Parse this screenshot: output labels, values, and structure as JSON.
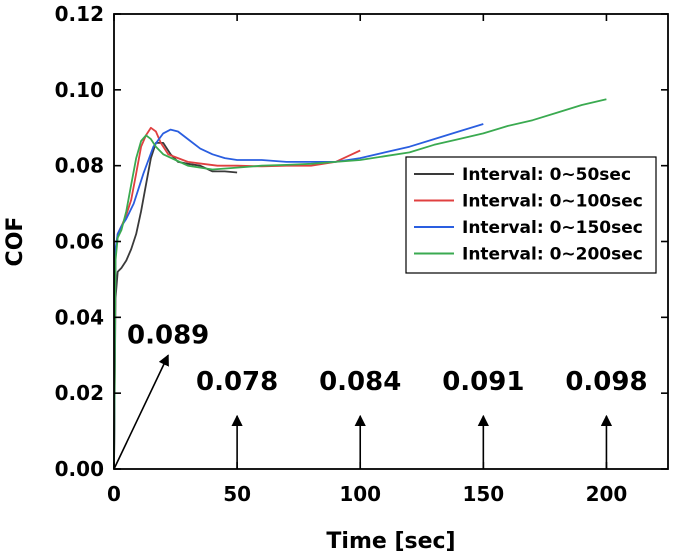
{
  "chart_data": {
    "type": "line",
    "title": "",
    "xlabel": "Time [sec]",
    "ylabel": "COF",
    "xlim": [
      0,
      225
    ],
    "ylim": [
      0,
      0.12
    ],
    "x_ticks": [
      0,
      50,
      100,
      150,
      200
    ],
    "x_tick_labels": [
      "0",
      "50",
      "100",
      "150",
      "200"
    ],
    "y_ticks": [
      0,
      0.02,
      0.04,
      0.06,
      0.08,
      0.1,
      0.12
    ],
    "y_tick_labels": [
      "0.00",
      "0.02",
      "0.04",
      "0.06",
      "0.08",
      "0.10",
      "0.12"
    ],
    "grid": false,
    "legend_position": "right-middle",
    "series": [
      {
        "name": "Interval: 0~50sec",
        "color": "#3a3a3a",
        "x": [
          0,
          0.6,
          1.5,
          3,
          5,
          7,
          9,
          11,
          13,
          15,
          17,
          20,
          23,
          26,
          30,
          35,
          40,
          45,
          50
        ],
        "y": [
          0,
          0.045,
          0.052,
          0.053,
          0.055,
          0.058,
          0.062,
          0.068,
          0.075,
          0.082,
          0.086,
          0.086,
          0.083,
          0.081,
          0.0805,
          0.08,
          0.0785,
          0.0785,
          0.0782
        ]
      },
      {
        "name": "Interval: 0~100sec",
        "color": "#e04040",
        "x": [
          0,
          0.6,
          1.5,
          3,
          5,
          7,
          9,
          11,
          13,
          15,
          17,
          19,
          22,
          26,
          30,
          36,
          42,
          50,
          60,
          70,
          80,
          90,
          95,
          100
        ],
        "y": [
          0,
          0.056,
          0.062,
          0.064,
          0.067,
          0.071,
          0.078,
          0.085,
          0.088,
          0.09,
          0.089,
          0.086,
          0.083,
          0.082,
          0.081,
          0.0805,
          0.08,
          0.08,
          0.0798,
          0.08,
          0.08,
          0.081,
          0.0825,
          0.084
        ]
      },
      {
        "name": "Interval: 0~150sec",
        "color": "#2a5ee0",
        "x": [
          0,
          0.6,
          1.5,
          3,
          5,
          8,
          12,
          16,
          20,
          23,
          26,
          30,
          35,
          40,
          45,
          50,
          60,
          70,
          80,
          90,
          100,
          110,
          120,
          130,
          140,
          150
        ],
        "y": [
          0,
          0.058,
          0.062,
          0.064,
          0.066,
          0.07,
          0.078,
          0.085,
          0.0885,
          0.0895,
          0.089,
          0.087,
          0.0845,
          0.083,
          0.082,
          0.0815,
          0.0815,
          0.081,
          0.081,
          0.081,
          0.082,
          0.0835,
          0.085,
          0.087,
          0.089,
          0.091
        ]
      },
      {
        "name": "Interval: 0~200sec",
        "color": "#3aaa50",
        "x": [
          0,
          0.6,
          1.5,
          3,
          5,
          7,
          9,
          11,
          13,
          15,
          17,
          20,
          25,
          30,
          35,
          40,
          50,
          60,
          70,
          80,
          90,
          100,
          110,
          120,
          130,
          140,
          150,
          160,
          170,
          180,
          190,
          200
        ],
        "y": [
          0,
          0.055,
          0.061,
          0.063,
          0.068,
          0.075,
          0.082,
          0.0865,
          0.088,
          0.087,
          0.085,
          0.083,
          0.0815,
          0.08,
          0.0795,
          0.079,
          0.0795,
          0.08,
          0.0802,
          0.0805,
          0.081,
          0.0815,
          0.0825,
          0.0835,
          0.0855,
          0.087,
          0.0885,
          0.0905,
          0.092,
          0.094,
          0.096,
          0.0975
        ]
      }
    ],
    "annotations": [
      {
        "text": "0.089",
        "x_from": 0,
        "y_from": 0,
        "x_to": 22,
        "y_to": 0.03
      },
      {
        "text": "0.078",
        "x_from": 50,
        "y_from": 0,
        "x_to": 50,
        "y_to": 0.014
      },
      {
        "text": "0.084",
        "x_from": 100,
        "y_from": 0,
        "x_to": 100,
        "y_to": 0.014
      },
      {
        "text": "0.091",
        "x_from": 150,
        "y_from": 0,
        "x_to": 150,
        "y_to": 0.014
      },
      {
        "text": "0.098",
        "x_from": 200,
        "y_from": 0,
        "x_to": 200,
        "y_to": 0.014
      }
    ]
  }
}
